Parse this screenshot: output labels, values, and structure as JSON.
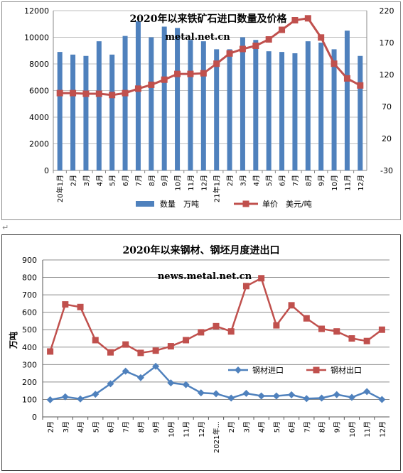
{
  "chart_data": [
    {
      "type": "bar+line",
      "title": "2020年以来铁矿石进口数量及价格",
      "subtitle": "metal.net.cn",
      "categories": [
        "20年1月",
        "2月",
        "3月",
        "4月",
        "5月",
        "6月",
        "7月",
        "8月",
        "9月",
        "10月",
        "11月",
        "12月",
        "21年1月",
        "2月",
        "3月",
        "4月",
        "5月",
        "6月",
        "7月",
        "8月",
        "9月",
        "10月",
        "11月",
        "12月"
      ],
      "left_axis": {
        "min": 0,
        "max": 12000,
        "ticks": [
          0,
          2000,
          4000,
          6000,
          8000,
          10000,
          12000
        ]
      },
      "right_axis": {
        "min": -30,
        "max": 220,
        "ticks": [
          -30,
          20,
          70,
          120,
          170,
          220
        ]
      },
      "grid": true,
      "legend_position": "bottom",
      "series": [
        {
          "name": "数量　万吨",
          "type": "bar",
          "axis": "left",
          "color": "#4f81bd",
          "values": [
            8900,
            8700,
            8600,
            9700,
            8700,
            10100,
            11200,
            10000,
            10800,
            10700,
            9800,
            9700,
            9100,
            9100,
            10000,
            9800,
            8950,
            8900,
            8800,
            9700,
            9600,
            9100,
            10500,
            8600
          ]
        },
        {
          "name": "单价　美元/吨",
          "type": "line",
          "axis": "right",
          "color": "#c0504d",
          "values": [
            91,
            91,
            90,
            90,
            88,
            91,
            98,
            104,
            112,
            121,
            121,
            122,
            137,
            153,
            160,
            165,
            175,
            190,
            205,
            208,
            178,
            137,
            114,
            103
          ]
        }
      ]
    },
    {
      "type": "line",
      "title": "2020年以来钢材、钢坯月度进出口",
      "subtitle": "news.metal.net.cn",
      "ylabel": "万吨",
      "categories": [
        "2月",
        "3月",
        "4月",
        "5月",
        "6月",
        "7月",
        "8月",
        "9月",
        "10月",
        "11月",
        "12月",
        "2021年...",
        "2月",
        "3月",
        "4月",
        "5月",
        "6月",
        "7月",
        "8月",
        "9月",
        "10月",
        "11月",
        "12月"
      ],
      "y_axis": {
        "min": 0,
        "max": 900,
        "ticks": [
          0,
          100,
          200,
          300,
          400,
          500,
          600,
          700,
          800,
          900
        ]
      },
      "grid": true,
      "legend_position": "inside-right",
      "series": [
        {
          "name": "钢材进口",
          "color": "#4f81bd",
          "marker": "diamond",
          "values": [
            98,
            115,
            103,
            130,
            190,
            262,
            225,
            290,
            195,
            185,
            138,
            133,
            108,
            135,
            120,
            120,
            127,
            105,
            108,
            128,
            112,
            145,
            100
          ]
        },
        {
          "name": "钢材出口",
          "color": "#c0504d",
          "marker": "square",
          "values": [
            375,
            645,
            630,
            440,
            370,
            415,
            367,
            380,
            405,
            440,
            485,
            520,
            490,
            750,
            795,
            525,
            640,
            565,
            505,
            490,
            450,
            435,
            500
          ]
        }
      ]
    }
  ]
}
